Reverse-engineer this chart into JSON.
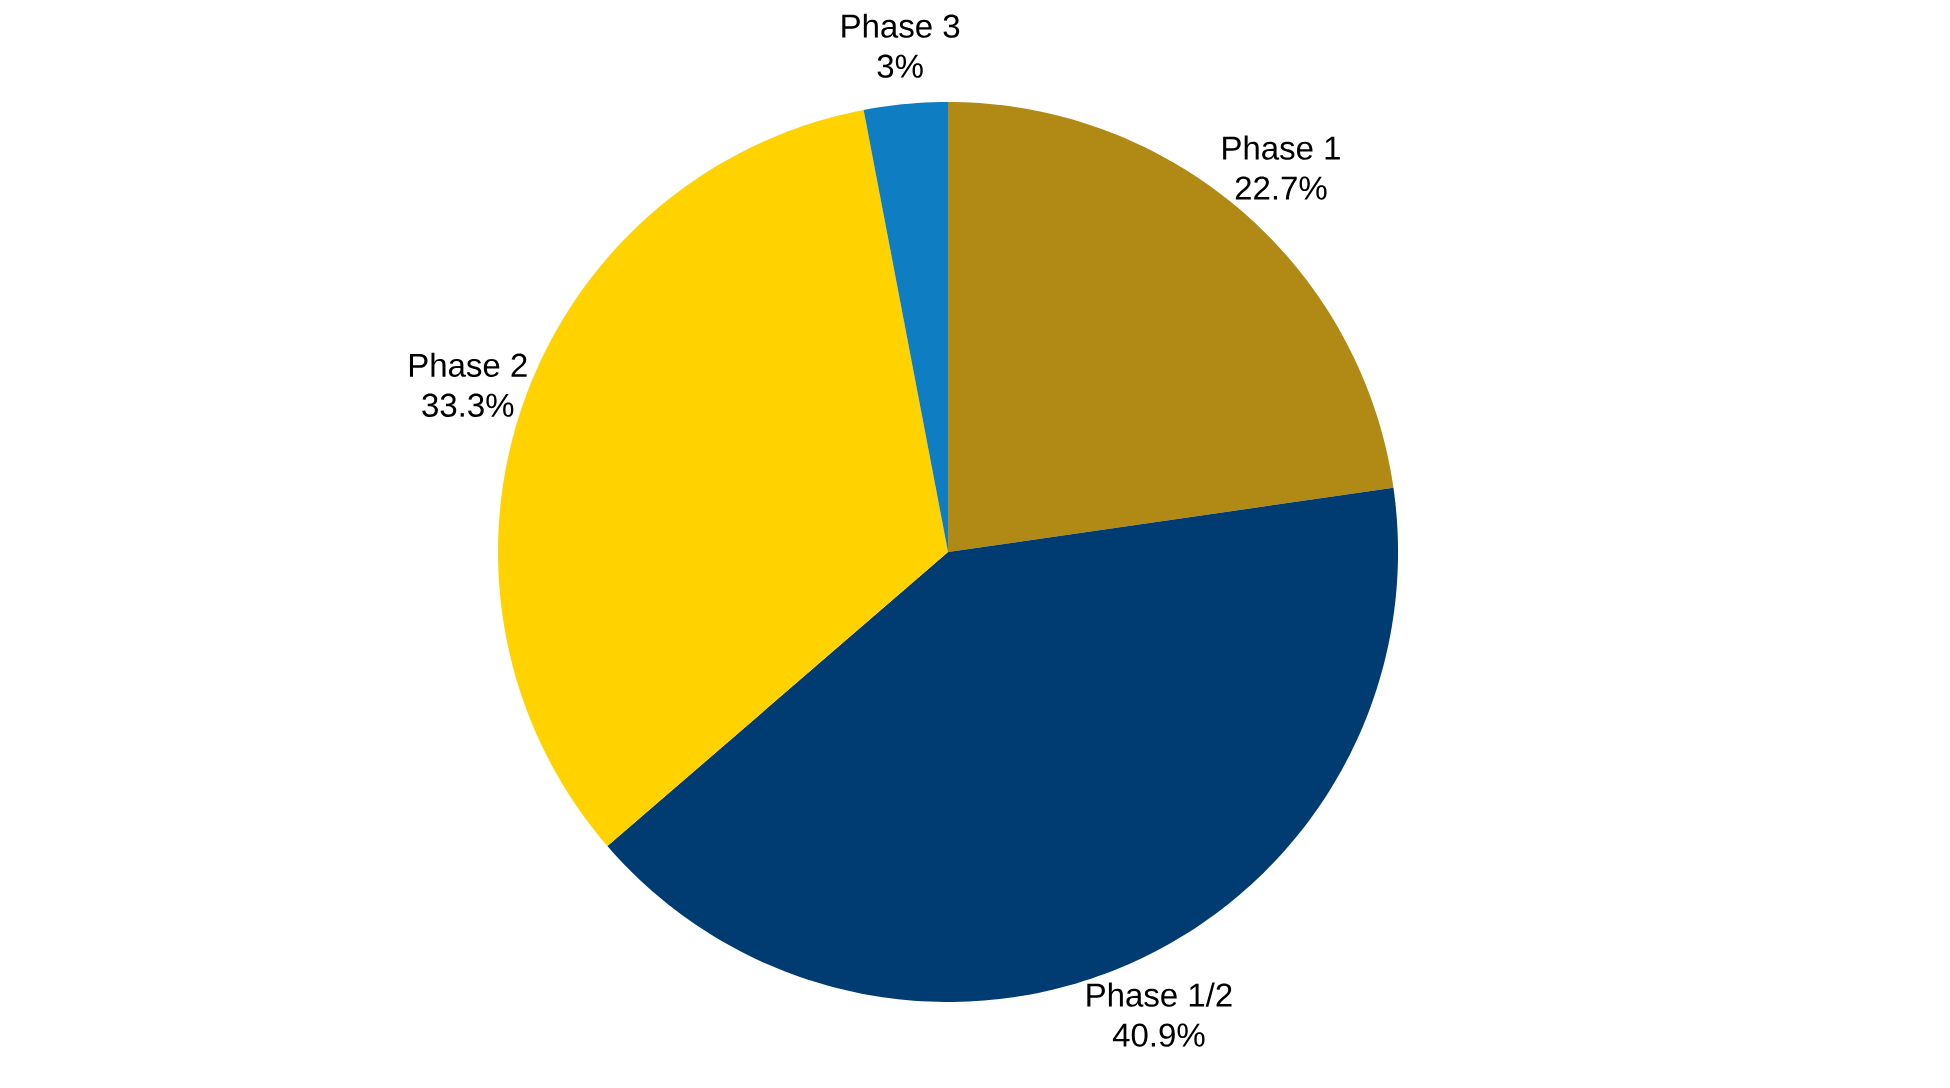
{
  "chart_data": {
    "type": "pie",
    "categories": [
      "Phase 1",
      "Phase 1/2",
      "Phase 2",
      "Phase 3"
    ],
    "values": [
      22.7,
      40.9,
      33.3,
      3
    ],
    "colors": [
      "#b08a14",
      "#003b71",
      "#ffd200",
      "#0f7dc2"
    ],
    "value_labels": [
      "22.7%",
      "40.9%",
      "33.3%",
      "3%"
    ]
  }
}
